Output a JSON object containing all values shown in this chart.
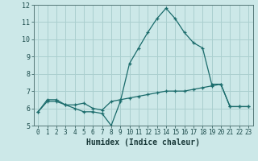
{
  "title": "",
  "xlabel": "Humidex (Indice chaleur)",
  "bg_color": "#cce8e8",
  "line_color": "#1a6b6b",
  "grid_color": "#aacfcf",
  "xlim": [
    -0.5,
    23.5
  ],
  "ylim": [
    5,
    12
  ],
  "xticks": [
    0,
    1,
    2,
    3,
    4,
    5,
    6,
    7,
    8,
    9,
    10,
    11,
    12,
    13,
    14,
    15,
    16,
    17,
    18,
    19,
    20,
    21,
    22,
    23
  ],
  "yticks": [
    5,
    6,
    7,
    8,
    9,
    10,
    11,
    12
  ],
  "series1_x": [
    0,
    1,
    2,
    3,
    4,
    5,
    6,
    7,
    8,
    9,
    10,
    11,
    12,
    13,
    14,
    15,
    16,
    17,
    18,
    19,
    20,
    21,
    22,
    23
  ],
  "series1_y": [
    5.8,
    6.4,
    6.4,
    6.2,
    6.2,
    6.3,
    6.0,
    5.9,
    6.4,
    6.5,
    6.6,
    6.7,
    6.8,
    6.9,
    7.0,
    7.0,
    7.0,
    7.1,
    7.2,
    7.3,
    7.4,
    6.1,
    6.1,
    6.1
  ],
  "series2_x": [
    0,
    1,
    2,
    3,
    4,
    5,
    6,
    7,
    8,
    9,
    10,
    11,
    12,
    13,
    14,
    15,
    16,
    17,
    18,
    19,
    20,
    21,
    22,
    23
  ],
  "series2_y": [
    5.8,
    6.5,
    6.5,
    6.2,
    6.0,
    5.8,
    5.8,
    5.7,
    5.0,
    6.4,
    8.6,
    9.5,
    10.4,
    11.2,
    11.8,
    11.2,
    10.4,
    9.8,
    9.5,
    7.4,
    7.4,
    6.1,
    6.1,
    6.1
  ],
  "tick_fontsize": 5.5,
  "xlabel_fontsize": 7
}
